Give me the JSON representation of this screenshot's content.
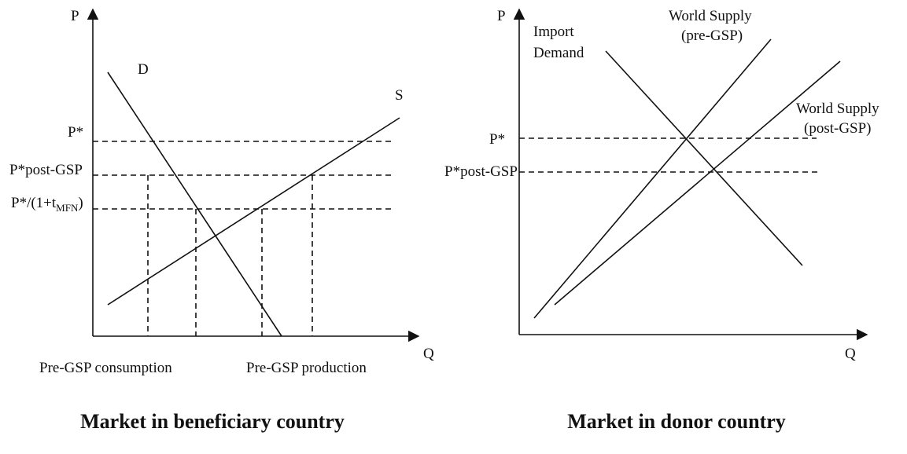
{
  "left": {
    "p_axis": "P",
    "q_axis": "Q",
    "demand": "D",
    "supply": "S",
    "p_star": "P*",
    "p_post": "P*post-GSP",
    "p_mfn": {
      "main": "P*/(1+t",
      "sub": "MFN",
      "close": ")"
    },
    "consumption": "Pre-GSP consumption",
    "production": "Pre-GSP production",
    "title": "Market in beneficiary country"
  },
  "right": {
    "p_axis": "P",
    "q_axis": "Q",
    "import_demand": [
      "Import",
      "Demand"
    ],
    "supply_pre": [
      "World Supply",
      "(pre-GSP)"
    ],
    "supply_post": [
      "World Supply",
      "(post-GSP)"
    ],
    "p_star": "P*",
    "p_post": "P*post-GSP",
    "title": "Market in donor country"
  }
}
